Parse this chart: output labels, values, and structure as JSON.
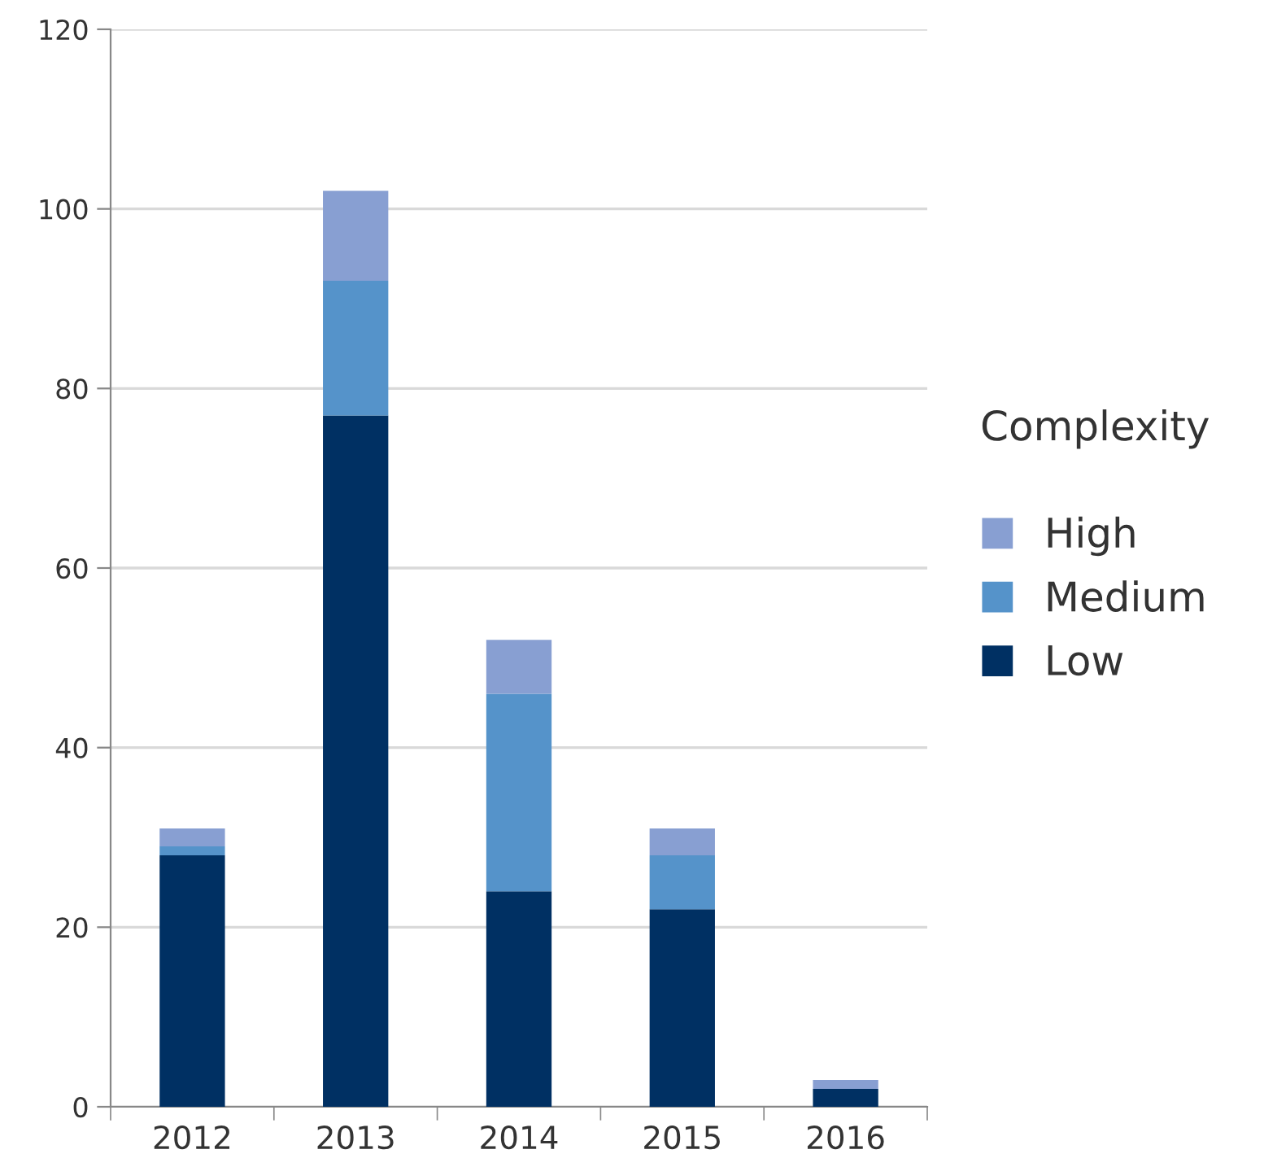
{
  "chart_data": {
    "type": "bar",
    "stacked": true,
    "categories": [
      "2012",
      "2013",
      "2014",
      "2015",
      "2016"
    ],
    "series": [
      {
        "name": "Low",
        "color": "#003063",
        "values": [
          28,
          77,
          24,
          22,
          2
        ]
      },
      {
        "name": "Medium",
        "color": "#5593ca",
        "values": [
          1,
          15,
          22,
          6,
          0
        ]
      },
      {
        "name": "High",
        "color": "#889fd2",
        "values": [
          2,
          10,
          6,
          3,
          1
        ]
      }
    ],
    "ylim": [
      0,
      120
    ],
    "yticks": [
      0,
      20,
      40,
      60,
      80,
      100,
      120
    ],
    "grid": "y",
    "legend": "right",
    "legend_title": "Complexity"
  }
}
